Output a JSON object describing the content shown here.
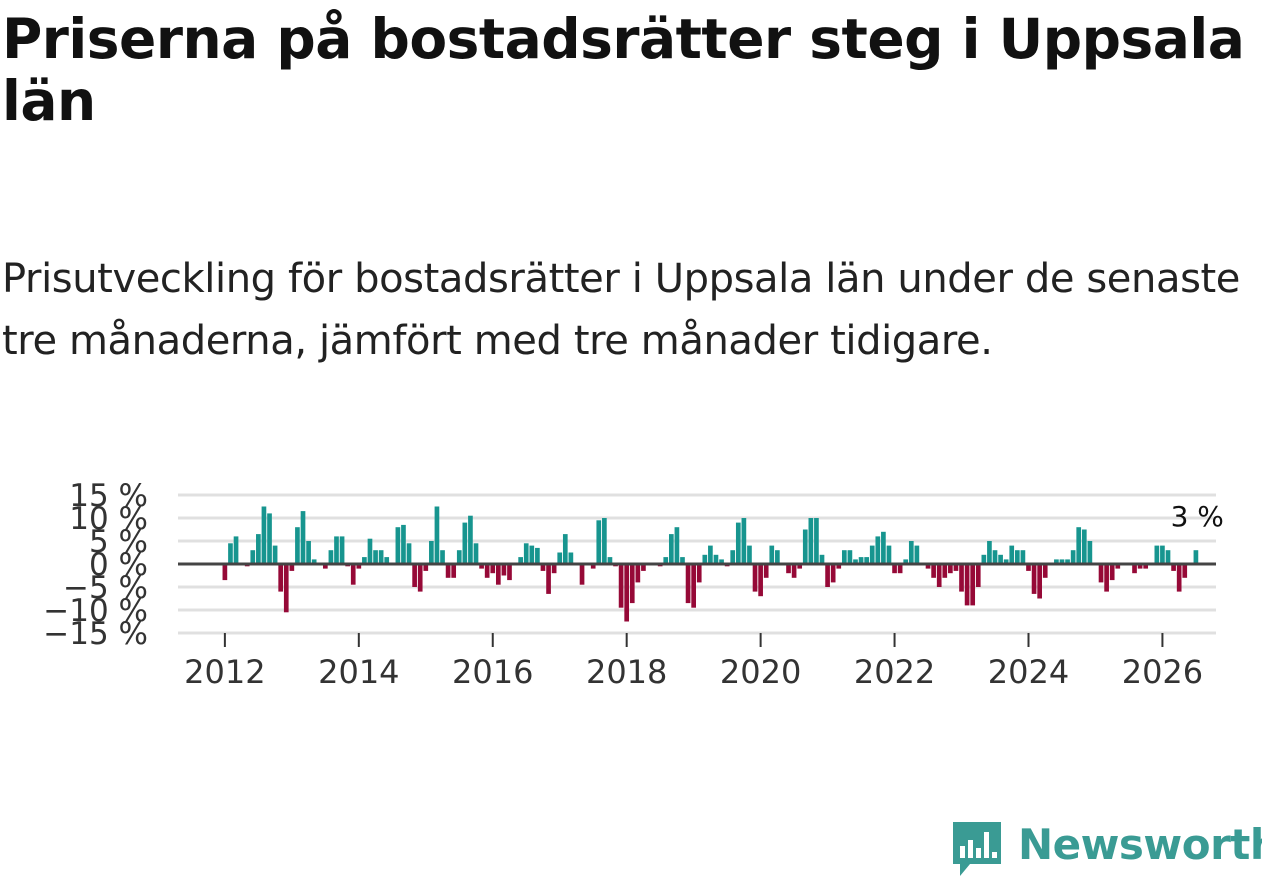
{
  "title": "Priserna på bostadsrätter steg i Uppsala län",
  "subtitle": "Prisutveckling för bostadsrätter i Uppsala län under de senaste tre månaderna, jämfört med tre månader tidigare.",
  "brand": {
    "name": "Newsworthy",
    "icon": "newsworthy-logo-icon",
    "color": "#3a9b94"
  },
  "colors": {
    "positive": "#17958f",
    "negative": "#960937",
    "zero_line": "#444444",
    "grid": "#e0e0e0"
  },
  "chart_data": {
    "type": "bar",
    "title": "Prisutveckling för bostadsrätter i Uppsala län",
    "xlabel": "",
    "ylabel": "",
    "y_ticks": [
      {
        "value": 15,
        "label": "15 %"
      },
      {
        "value": 10,
        "label": "10 %"
      },
      {
        "value": 5,
        "label": "5 %"
      },
      {
        "value": 0,
        "label": "0 %"
      },
      {
        "value": -5,
        "label": "−5 %"
      },
      {
        "value": -10,
        "label": "−10 %"
      },
      {
        "value": -15,
        "label": "−15 %"
      }
    ],
    "ylim": [
      -15,
      15
    ],
    "xlim": [
      2011.3,
      2026.8
    ],
    "x_ticks": [
      {
        "value": 2012,
        "label": "2012"
      },
      {
        "value": 2014,
        "label": "2014"
      },
      {
        "value": 2016,
        "label": "2016"
      },
      {
        "value": 2018,
        "label": "2018"
      },
      {
        "value": 2020,
        "label": "2020"
      },
      {
        "value": 2022,
        "label": "2022"
      },
      {
        "value": 2024,
        "label": "2024"
      },
      {
        "value": 2026,
        "label": "2026"
      }
    ],
    "start_year": 2012,
    "start_month": 1,
    "values": [
      -3.5,
      4.5,
      6,
      0,
      -0.5,
      3,
      6.5,
      12.5,
      11,
      4,
      -6,
      -10.5,
      -1.5,
      8,
      11.5,
      5,
      1,
      0,
      -1,
      3,
      6,
      6,
      -0.5,
      -4.5,
      -1,
      1.5,
      5.5,
      3,
      3,
      1.5,
      0,
      8,
      8.5,
      4.5,
      -5,
      -6,
      -1.5,
      5,
      12.5,
      3,
      -3,
      -3,
      3,
      9,
      10.5,
      4.5,
      -1,
      -3,
      -2,
      -4.5,
      -2.5,
      -3.5,
      0,
      1.5,
      4.5,
      4,
      3.5,
      -1.5,
      -6.5,
      -2,
      2.5,
      6.5,
      2.5,
      0,
      -4.5,
      0,
      -1,
      9.5,
      10,
      1.5,
      -0.5,
      -9.5,
      -12.5,
      -8.5,
      -4,
      -1.5,
      0,
      0,
      -0.5,
      1.5,
      6.5,
      8,
      1.5,
      -8.5,
      -9.5,
      -4,
      2,
      4,
      2,
      1,
      -0.5,
      3,
      9,
      10,
      4,
      -6,
      -7,
      -3,
      4,
      3,
      0,
      -2,
      -3,
      -1,
      7.5,
      10,
      10,
      2,
      -5,
      -4,
      -1,
      3,
      3,
      1,
      1.5,
      1.5,
      4,
      6,
      7,
      4,
      -2,
      -2,
      1,
      5,
      4,
      0,
      -1,
      -3,
      -5,
      -3,
      -2,
      -1.5,
      -6,
      -9,
      -9,
      -5,
      2,
      5,
      3,
      2,
      1,
      4,
      3,
      3,
      -1.5,
      -6.5,
      -7.5,
      -3,
      0,
      1,
      1,
      1,
      3,
      8,
      7.5,
      5,
      0,
      -4,
      -6,
      -3.5,
      -1,
      0,
      0,
      -2,
      -1,
      -1,
      0,
      4,
      4,
      3,
      -1.5,
      -6,
      -3,
      0,
      3
    ],
    "last_value_label": "3 %"
  }
}
